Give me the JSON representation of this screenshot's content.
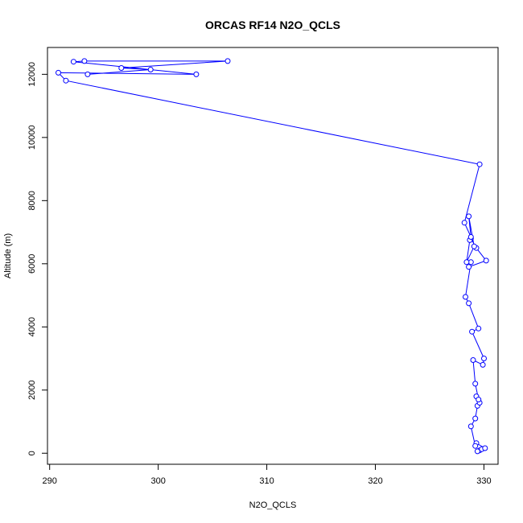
{
  "chart_data": {
    "type": "line",
    "title": "ORCAS RF14 N2O_QCLS",
    "xlabel": "N2O_QCLS",
    "ylabel": "Altitude (m)",
    "xlim": [
      289.8,
      331.3
    ],
    "ylim": [
      -350,
      12850
    ],
    "xticks": [
      290,
      300,
      310,
      320,
      330
    ],
    "yticks": [
      0,
      2000,
      4000,
      6000,
      8000,
      10000,
      12000
    ],
    "grid": false,
    "markers": "open-circle",
    "color": "#0000ff",
    "series": [
      {
        "x": [
          329.6,
          329.8,
          329.4,
          330.1,
          329.3,
          329.2,
          328.8,
          329.2,
          329.4,
          329.6,
          329.3,
          329.5,
          329.2,
          329.0,
          329.9,
          330.0,
          328.9,
          329.5,
          328.6,
          328.3,
          328.8,
          328.6,
          330.2,
          329.3,
          328.8,
          328.7,
          328.4,
          329.1,
          328.6,
          328.8,
          328.2,
          329.6,
          291.5,
          290.8,
          303.5,
          292.2,
          293.2,
          306.4,
          296.6,
          299.3,
          293.5
        ],
        "y": [
          90,
          130,
          60,
          160,
          320,
          230,
          850,
          1100,
          1500,
          1600,
          1800,
          1700,
          2200,
          2950,
          2800,
          3000,
          3850,
          3950,
          4750,
          4950,
          6050,
          5900,
          6100,
          6500,
          6800,
          6750,
          6050,
          6550,
          7500,
          6850,
          7300,
          9150,
          11800,
          12050,
          12000,
          12400,
          12420,
          12420,
          12200,
          12150,
          12000
        ]
      }
    ]
  }
}
